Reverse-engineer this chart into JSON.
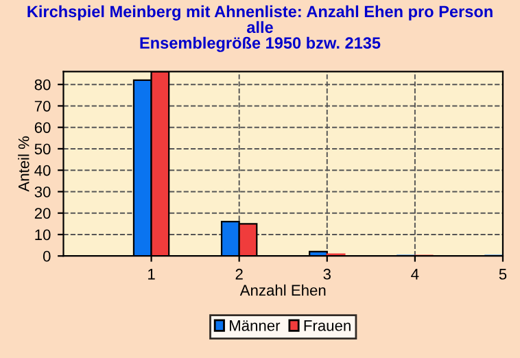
{
  "chart_data": {
    "type": "bar",
    "title": "Kirchspiel Meinberg mit Ahnenliste: Anzahl Ehen pro Person\nalle\nEnsemblegröße 1950 bzw. 2135",
    "xlabel": "Anzahl Ehen",
    "ylabel": "Anteil %",
    "x": [
      1,
      2,
      3,
      4,
      5
    ],
    "series": [
      {
        "name": "Männer",
        "color": "#0a74f0",
        "values": [
          82,
          16,
          2,
          0.2,
          0.2
        ]
      },
      {
        "name": "Frauen",
        "color": "#f03c3c",
        "values": [
          86,
          15,
          0.8,
          0.2,
          0
        ]
      }
    ],
    "xlim": [
      0,
      5
    ],
    "xticks": [
      1,
      2,
      3,
      4,
      5
    ],
    "ylim": [
      0,
      86
    ],
    "yticks": [
      0,
      10,
      20,
      30,
      40,
      50,
      60,
      70,
      80
    ],
    "grid": true,
    "legend": "bottom"
  }
}
